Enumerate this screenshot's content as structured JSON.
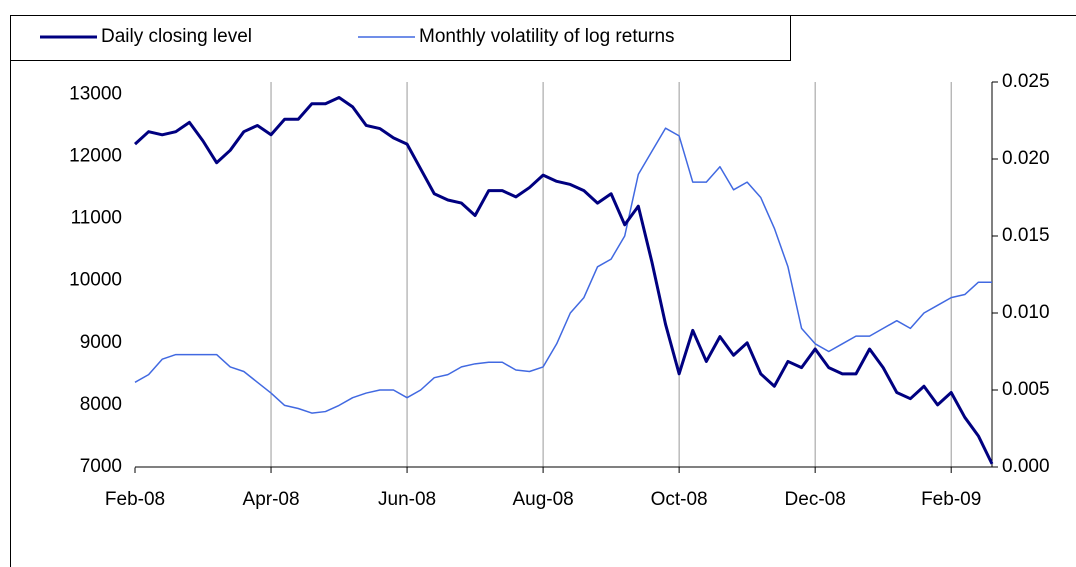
{
  "chart_data": {
    "type": "line",
    "x": [
      0,
      0.2,
      0.4,
      0.6,
      0.8,
      1,
      1.2,
      1.4,
      1.6,
      1.8,
      2,
      2.2,
      2.4,
      2.6,
      2.8,
      3,
      3.2,
      3.4,
      3.6,
      3.8,
      4,
      4.2,
      4.4,
      4.6,
      4.8,
      5,
      5.2,
      5.4,
      5.6,
      5.8,
      6,
      6.2,
      6.4,
      6.6,
      6.8,
      7,
      7.2,
      7.4,
      7.6,
      7.8,
      8,
      8.2,
      8.4,
      8.6,
      8.8,
      9,
      9.2,
      9.4,
      9.6,
      9.8,
      10,
      10.2,
      10.4,
      10.6,
      10.8,
      11,
      11.2,
      11.4,
      11.6,
      11.8,
      12,
      12.2,
      12.4,
      12.6
    ],
    "xlim": [
      0,
      12.6
    ],
    "xticks": [
      {
        "value": 0,
        "label": "Feb-08"
      },
      {
        "value": 2,
        "label": "Apr-08"
      },
      {
        "value": 4,
        "label": "Jun-08"
      },
      {
        "value": 6,
        "label": "Aug-08"
      },
      {
        "value": 8,
        "label": "Oct-08"
      },
      {
        "value": 10,
        "label": "Dec-08"
      },
      {
        "value": 12,
        "label": "Feb-09"
      }
    ],
    "ylim": [
      7000,
      13200
    ],
    "yticks": [
      7000,
      8000,
      9000,
      10000,
      11000,
      12000,
      13000
    ],
    "y2lim": [
      0,
      0.025
    ],
    "y2ticks": [
      {
        "value": 0,
        "label": "0.000"
      },
      {
        "value": 0.005,
        "label": "0.005"
      },
      {
        "value": 0.01,
        "label": "0.010"
      },
      {
        "value": 0.015,
        "label": "0.015"
      },
      {
        "value": 0.02,
        "label": "0.020"
      },
      {
        "value": 0.025,
        "label": "0.025"
      }
    ],
    "grid": "x",
    "legend": "top-left",
    "series": [
      {
        "name": "Daily closing level",
        "color": "#000080",
        "axis": "y",
        "values": [
          12200,
          12400,
          12350,
          12400,
          12550,
          12250,
          11900,
          12100,
          12400,
          12500,
          12350,
          12600,
          12600,
          12850,
          12850,
          12950,
          12800,
          12500,
          12450,
          12300,
          12200,
          11800,
          11400,
          11300,
          11250,
          11050,
          11450,
          11450,
          11350,
          11500,
          11700,
          11600,
          11550,
          11450,
          11250,
          11400,
          10900,
          11200,
          10300,
          9300,
          8500,
          9200,
          8700,
          9100,
          8800,
          9000,
          8500,
          8300,
          8700,
          8600,
          8900,
          8600,
          8500,
          8500,
          8900,
          8600,
          8200,
          8100,
          8300,
          8000,
          8200,
          7800,
          7500,
          7050
        ]
      },
      {
        "name": "Monthly volatility of log returns",
        "color": "#4169e1",
        "axis": "y2",
        "values": [
          0.0055,
          0.006,
          0.007,
          0.0073,
          0.0073,
          0.0073,
          0.0073,
          0.0065,
          0.0062,
          0.0055,
          0.0048,
          0.004,
          0.0038,
          0.0035,
          0.0036,
          0.004,
          0.0045,
          0.0048,
          0.005,
          0.005,
          0.0045,
          0.005,
          0.0058,
          0.006,
          0.0065,
          0.0067,
          0.0068,
          0.0068,
          0.0063,
          0.0062,
          0.0065,
          0.008,
          0.01,
          0.011,
          0.013,
          0.0135,
          0.015,
          0.019,
          0.0205,
          0.022,
          0.0215,
          0.0185,
          0.0185,
          0.0195,
          0.018,
          0.0185,
          0.0175,
          0.0155,
          0.013,
          0.009,
          0.008,
          0.0075,
          0.008,
          0.0085,
          0.0085,
          0.009,
          0.0095,
          0.009,
          0.01,
          0.0105,
          0.011,
          0.0112,
          0.012,
          0.012
        ]
      }
    ]
  }
}
